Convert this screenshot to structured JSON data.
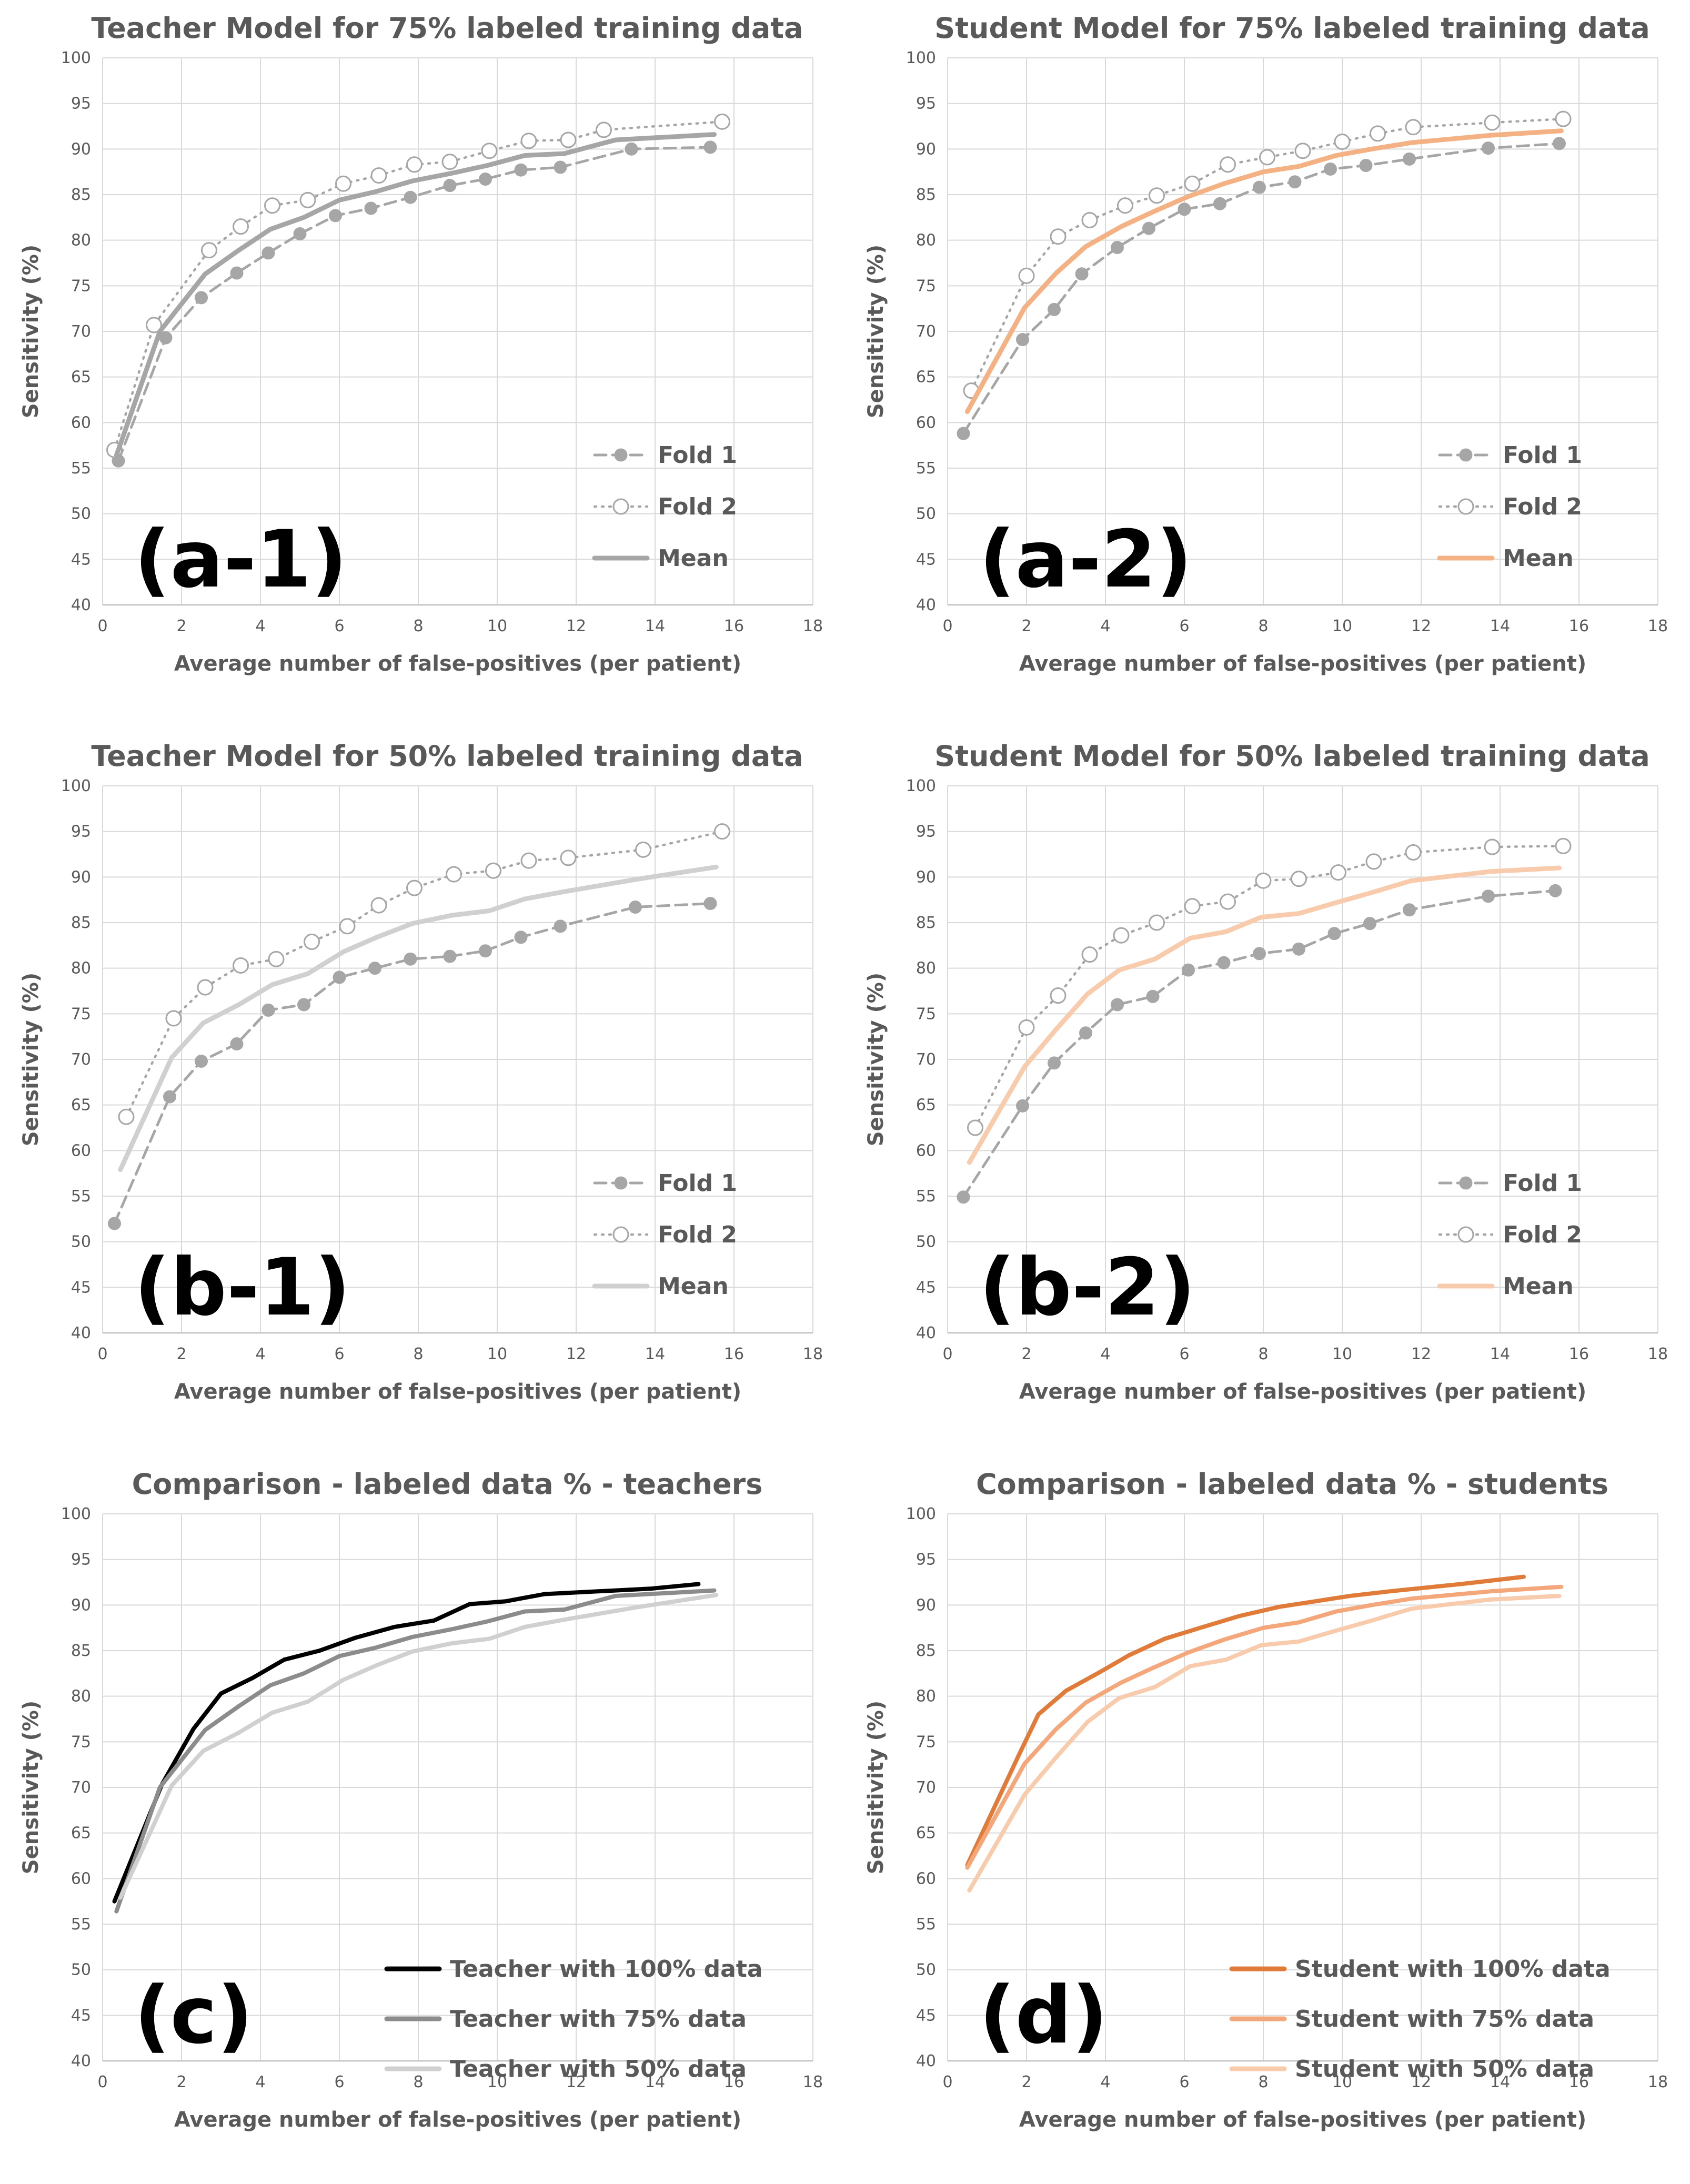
{
  "figure": {
    "colors": {
      "text": "#595959",
      "grid": "#d9d9d9",
      "fold": "#a6a6a6",
      "gray_mean_75": "#a6a6a6",
      "gray_mean_50": "#d0d0d0",
      "orange_mean_75": "#f4b183",
      "orange_mean_50": "#f8cbad",
      "teacher100": "#000000",
      "teacher75": "#8c8c8c",
      "teacher50": "#d0d0d0",
      "student100": "#e07b39",
      "student75": "#f4a77a",
      "student50": "#f8cbad"
    }
  },
  "chart_data": [
    {
      "id": "a1",
      "panel_label": "(a-1)",
      "type": "line",
      "title": "Teacher Model for 75% labeled training data",
      "xlabel": "Average number of false-positives (per patient)",
      "ylabel": "Sensitivity (%)",
      "xlim": [
        0,
        18
      ],
      "ylim": [
        40,
        100
      ],
      "xticks": [
        "0",
        "2",
        "4",
        "6",
        "8",
        "10",
        "12",
        "14",
        "16",
        "18"
      ],
      "yticks": [
        "40",
        "45",
        "50",
        "55",
        "60",
        "65",
        "70",
        "75",
        "80",
        "85",
        "90",
        "95",
        "100"
      ],
      "legend_position": "lower-right",
      "series": [
        {
          "name": "Fold 1",
          "style": "dashed-filled",
          "color": "#a6a6a6",
          "x": [
            0.4,
            1.6,
            2.5,
            3.4,
            4.2,
            5.0,
            5.9,
            6.8,
            7.8,
            8.8,
            9.7,
            10.6,
            11.6,
            13.4,
            15.4
          ],
          "y": [
            55.8,
            69.3,
            73.7,
            76.4,
            78.6,
            80.7,
            82.7,
            83.5,
            84.7,
            86.0,
            86.7,
            87.7,
            88.0,
            90.0,
            90.2
          ]
        },
        {
          "name": "Fold 2",
          "style": "dotted-open",
          "color": "#a6a6a6",
          "x": [
            0.3,
            1.3,
            2.7,
            3.5,
            4.3,
            5.2,
            6.1,
            7.0,
            7.9,
            8.8,
            9.8,
            10.8,
            11.8,
            12.7,
            15.7
          ],
          "y": [
            57.0,
            70.7,
            78.9,
            81.5,
            83.8,
            84.4,
            86.2,
            87.1,
            88.3,
            88.6,
            89.8,
            90.9,
            91.0,
            92.1,
            93.0
          ]
        },
        {
          "name": "Mean",
          "style": "solid",
          "color": "#a6a6a6",
          "x": [
            0.35,
            1.45,
            2.6,
            3.45,
            4.25,
            5.1,
            6.0,
            6.9,
            7.85,
            8.8,
            9.75,
            10.7,
            11.7,
            13.0,
            15.5
          ],
          "y": [
            56.4,
            70.0,
            76.3,
            78.9,
            81.2,
            82.5,
            84.4,
            85.3,
            86.5,
            87.3,
            88.2,
            89.3,
            89.5,
            91.0,
            91.6
          ]
        }
      ]
    },
    {
      "id": "a2",
      "panel_label": "(a-2)",
      "type": "line",
      "title": "Student Model for 75% labeled training data",
      "xlabel": "Average number of false-positives (per patient)",
      "ylabel": "Sensitivity (%)",
      "xlim": [
        0,
        18
      ],
      "ylim": [
        40,
        100
      ],
      "xticks": [
        "0",
        "2",
        "4",
        "6",
        "8",
        "10",
        "12",
        "14",
        "16",
        "18"
      ],
      "yticks": [
        "40",
        "45",
        "50",
        "55",
        "60",
        "65",
        "70",
        "75",
        "80",
        "85",
        "90",
        "95",
        "100"
      ],
      "legend_position": "lower-right",
      "series": [
        {
          "name": "Fold 1",
          "style": "dashed-filled",
          "color": "#a6a6a6",
          "x": [
            0.4,
            1.9,
            2.7,
            3.4,
            4.3,
            5.1,
            6.0,
            6.9,
            7.9,
            8.8,
            9.7,
            10.6,
            11.7,
            13.7,
            15.5
          ],
          "y": [
            58.8,
            69.1,
            72.4,
            76.3,
            79.2,
            81.3,
            83.4,
            84.0,
            85.8,
            86.4,
            87.8,
            88.2,
            88.9,
            90.1,
            90.6
          ]
        },
        {
          "name": "Fold 2",
          "style": "dotted-open",
          "color": "#a6a6a6",
          "x": [
            0.6,
            2.0,
            2.8,
            3.6,
            4.5,
            5.3,
            6.2,
            7.1,
            8.1,
            9.0,
            10.0,
            10.9,
            11.8,
            13.8,
            15.6
          ],
          "y": [
            63.5,
            76.1,
            80.4,
            82.2,
            83.8,
            84.9,
            86.2,
            88.3,
            89.1,
            89.8,
            90.8,
            91.7,
            92.4,
            92.9,
            93.3
          ]
        },
        {
          "name": "Mean",
          "style": "solid",
          "color": "#f4b183",
          "x": [
            0.5,
            1.95,
            2.75,
            3.5,
            4.4,
            5.2,
            6.1,
            7.0,
            8.0,
            8.9,
            9.85,
            10.75,
            11.75,
            13.75,
            15.55
          ],
          "y": [
            61.2,
            72.6,
            76.4,
            79.3,
            81.5,
            83.1,
            84.8,
            86.2,
            87.5,
            88.1,
            89.3,
            90.0,
            90.7,
            91.5,
            92.0
          ]
        }
      ]
    },
    {
      "id": "b1",
      "panel_label": "(b-1)",
      "type": "line",
      "title": "Teacher Model for 50% labeled training data",
      "xlabel": "Average number of false-positives (per patient)",
      "ylabel": "Sensitivity (%)",
      "xlim": [
        0,
        18
      ],
      "ylim": [
        40,
        100
      ],
      "xticks": [
        "0",
        "2",
        "4",
        "6",
        "8",
        "10",
        "12",
        "14",
        "16",
        "18"
      ],
      "yticks": [
        "40",
        "45",
        "50",
        "55",
        "60",
        "65",
        "70",
        "75",
        "80",
        "85",
        "90",
        "95",
        "100"
      ],
      "legend_position": "lower-right",
      "series": [
        {
          "name": "Fold 1",
          "style": "dashed-filled",
          "color": "#a6a6a6",
          "x": [
            0.3,
            1.7,
            2.5,
            3.4,
            4.2,
            5.1,
            6.0,
            6.9,
            7.8,
            8.8,
            9.7,
            10.6,
            11.6,
            13.5,
            15.4
          ],
          "y": [
            52.0,
            65.9,
            69.8,
            71.7,
            75.4,
            76.0,
            79.0,
            80.0,
            81.0,
            81.3,
            81.9,
            83.4,
            84.6,
            86.7,
            87.1
          ]
        },
        {
          "name": "Fold 2",
          "style": "dotted-open",
          "color": "#a6a6a6",
          "x": [
            0.6,
            1.8,
            2.6,
            3.5,
            4.4,
            5.3,
            6.2,
            7.0,
            7.9,
            8.9,
            9.9,
            10.8,
            11.8,
            13.7,
            15.7
          ],
          "y": [
            63.7,
            74.5,
            77.9,
            80.3,
            81.0,
            82.9,
            84.6,
            86.9,
            88.8,
            90.3,
            90.7,
            91.8,
            92.1,
            93.0,
            95.0
          ]
        },
        {
          "name": "Mean",
          "style": "solid",
          "color": "#d0d0d0",
          "x": [
            0.45,
            1.75,
            2.55,
            3.45,
            4.3,
            5.2,
            6.1,
            6.95,
            7.85,
            8.85,
            9.8,
            10.7,
            11.7,
            13.6,
            15.55
          ],
          "y": [
            57.9,
            70.2,
            74.0,
            76.0,
            78.2,
            79.4,
            81.8,
            83.4,
            84.9,
            85.8,
            86.3,
            87.6,
            88.4,
            89.8,
            91.1
          ]
        }
      ]
    },
    {
      "id": "b2",
      "panel_label": "(b-2)",
      "type": "line",
      "title": "Student Model for 50% labeled training data",
      "xlabel": "Average number of false-positives (per patient)",
      "ylabel": "Sensitivity (%)",
      "xlim": [
        0,
        18
      ],
      "ylim": [
        40,
        100
      ],
      "xticks": [
        "0",
        "2",
        "4",
        "6",
        "8",
        "10",
        "12",
        "14",
        "16",
        "18"
      ],
      "yticks": [
        "40",
        "45",
        "50",
        "55",
        "60",
        "65",
        "70",
        "75",
        "80",
        "85",
        "90",
        "95",
        "100"
      ],
      "legend_position": "lower-right",
      "series": [
        {
          "name": "Fold 1",
          "style": "dashed-filled",
          "color": "#a6a6a6",
          "x": [
            0.4,
            1.9,
            2.7,
            3.5,
            4.3,
            5.2,
            6.1,
            7.0,
            7.9,
            8.9,
            9.8,
            10.7,
            11.7,
            13.7,
            15.4
          ],
          "y": [
            54.9,
            64.9,
            69.6,
            72.9,
            76.0,
            76.9,
            79.8,
            80.6,
            81.6,
            82.1,
            83.8,
            84.9,
            86.4,
            87.9,
            88.5
          ]
        },
        {
          "name": "Fold 2",
          "style": "dotted-open",
          "color": "#a6a6a6",
          "x": [
            0.7,
            2.0,
            2.8,
            3.6,
            4.4,
            5.3,
            6.2,
            7.1,
            8.0,
            8.9,
            9.9,
            10.8,
            11.8,
            13.8,
            15.6
          ],
          "y": [
            62.5,
            73.5,
            77.0,
            81.5,
            83.6,
            85.0,
            86.8,
            87.3,
            89.6,
            89.8,
            90.5,
            91.7,
            92.7,
            93.3,
            93.4
          ]
        },
        {
          "name": "Mean",
          "style": "solid",
          "color": "#f8cbad",
          "x": [
            0.55,
            1.95,
            2.75,
            3.55,
            4.35,
            5.25,
            6.15,
            7.05,
            7.95,
            8.9,
            9.85,
            10.75,
            11.75,
            13.75,
            15.5
          ],
          "y": [
            58.7,
            69.2,
            73.3,
            77.2,
            79.8,
            81.0,
            83.3,
            84.0,
            85.6,
            86.0,
            87.2,
            88.3,
            89.6,
            90.6,
            91.0
          ]
        }
      ]
    },
    {
      "id": "c",
      "panel_label": "(c)",
      "type": "line",
      "title": "Comparison - labeled data % - teachers",
      "xlabel": "Average number of false-positives (per patient)",
      "ylabel": "Sensitivity (%)",
      "xlim": [
        0,
        18
      ],
      "ylim": [
        40,
        100
      ],
      "xticks": [
        "0",
        "2",
        "4",
        "6",
        "8",
        "10",
        "12",
        "14",
        "16",
        "18"
      ],
      "yticks": [
        "40",
        "45",
        "50",
        "55",
        "60",
        "65",
        "70",
        "75",
        "80",
        "85",
        "90",
        "95",
        "100"
      ],
      "legend_position": "lower-right",
      "series": [
        {
          "name": "Teacher with 100% data",
          "style": "solid",
          "color": "#000000",
          "x": [
            0.3,
            1.5,
            2.3,
            3.0,
            3.8,
            4.6,
            5.5,
            6.4,
            7.4,
            8.4,
            9.3,
            10.2,
            11.2,
            13.9,
            15.1
          ],
          "y": [
            57.5,
            70.3,
            76.4,
            80.3,
            82.0,
            84.0,
            85.0,
            86.4,
            87.6,
            88.3,
            90.1,
            90.4,
            91.2,
            91.8,
            92.3
          ]
        },
        {
          "name": "Teacher with 75% data",
          "style": "solid",
          "color": "#8c8c8c",
          "x": [
            0.35,
            1.45,
            2.6,
            3.45,
            4.25,
            5.1,
            6.0,
            6.9,
            7.85,
            8.8,
            9.75,
            10.7,
            11.7,
            13.0,
            15.5
          ],
          "y": [
            56.4,
            70.0,
            76.3,
            78.9,
            81.2,
            82.5,
            84.4,
            85.3,
            86.5,
            87.3,
            88.2,
            89.3,
            89.5,
            91.0,
            91.6
          ]
        },
        {
          "name": "Teacher with 50% data",
          "style": "solid",
          "color": "#d0d0d0",
          "x": [
            0.45,
            1.75,
            2.55,
            3.45,
            4.3,
            5.2,
            6.1,
            6.95,
            7.85,
            8.85,
            9.8,
            10.7,
            11.7,
            13.6,
            15.55
          ],
          "y": [
            57.9,
            70.2,
            74.0,
            76.0,
            78.2,
            79.4,
            81.8,
            83.4,
            84.9,
            85.8,
            86.3,
            87.6,
            88.4,
            89.8,
            91.1
          ]
        }
      ]
    },
    {
      "id": "d",
      "panel_label": "(d)",
      "type": "line",
      "title": "Comparison - labeled data % - students",
      "xlabel": "Average number of false-positives (per patient)",
      "ylabel": "Sensitivity (%)",
      "xlim": [
        0,
        18
      ],
      "ylim": [
        40,
        100
      ],
      "xticks": [
        "0",
        "2",
        "4",
        "6",
        "8",
        "10",
        "12",
        "14",
        "16",
        "18"
      ],
      "yticks": [
        "40",
        "45",
        "50",
        "55",
        "60",
        "65",
        "70",
        "75",
        "80",
        "85",
        "90",
        "95",
        "100"
      ],
      "legend_position": "lower-right",
      "series": [
        {
          "name": "Student with 100% data",
          "style": "solid",
          "color": "#e07b39",
          "x": [
            0.5,
            1.8,
            2.3,
            3.0,
            3.8,
            4.6,
            5.5,
            6.4,
            7.4,
            8.4,
            9.3,
            10.2,
            11.2,
            13.0,
            14.6
          ],
          "y": [
            61.5,
            73.5,
            78.0,
            80.6,
            82.5,
            84.5,
            86.3,
            87.5,
            88.8,
            89.8,
            90.4,
            91.0,
            91.5,
            92.3,
            93.1
          ]
        },
        {
          "name": "Student with 75% data",
          "style": "solid",
          "color": "#f4a77a",
          "x": [
            0.5,
            1.95,
            2.75,
            3.5,
            4.4,
            5.2,
            6.1,
            7.0,
            8.0,
            8.9,
            9.85,
            10.75,
            11.75,
            13.75,
            15.55
          ],
          "y": [
            61.2,
            72.6,
            76.4,
            79.3,
            81.5,
            83.1,
            84.8,
            86.2,
            87.5,
            88.1,
            89.3,
            90.0,
            90.7,
            91.5,
            92.0
          ]
        },
        {
          "name": "Student with 50% data",
          "style": "solid",
          "color": "#f8cbad",
          "x": [
            0.55,
            1.95,
            2.75,
            3.55,
            4.35,
            5.25,
            6.15,
            7.05,
            7.95,
            8.9,
            9.85,
            10.75,
            11.75,
            13.75,
            15.5
          ],
          "y": [
            58.7,
            69.2,
            73.3,
            77.2,
            79.8,
            81.0,
            83.3,
            84.0,
            85.6,
            86.0,
            87.2,
            88.3,
            89.6,
            90.6,
            91.0
          ]
        }
      ]
    }
  ]
}
